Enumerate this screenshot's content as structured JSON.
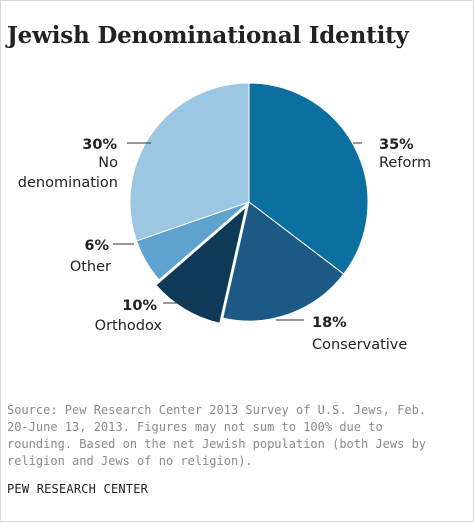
{
  "title": "Jewish Denominational Identity",
  "chart_data": {
    "type": "pie",
    "categories": [
      "Reform",
      "Conservative",
      "Orthodox",
      "Other",
      "No denomination"
    ],
    "values": [
      35,
      18,
      10,
      6,
      30
    ],
    "labels": [
      "35%",
      "18%",
      "10%",
      "6%",
      "30%"
    ],
    "explode": [
      "Orthodox"
    ],
    "colors": {
      "Reform": "#0b6fa0",
      "Conservative": "#1c5985",
      "Orthodox": "#0e3a57",
      "Other": "#5ea3cf",
      "No denomination": "#9cc7e3"
    }
  },
  "source": "Source: Pew Research Center 2013 Survey of U.S. Jews, Feb.\n20-June 13, 2013. Figures may not sum to 100% due to\nrounding. Based on the net Jewish population (both Jews by\nreligion and Jews of no religion).",
  "footer": "PEW RESEARCH CENTER"
}
